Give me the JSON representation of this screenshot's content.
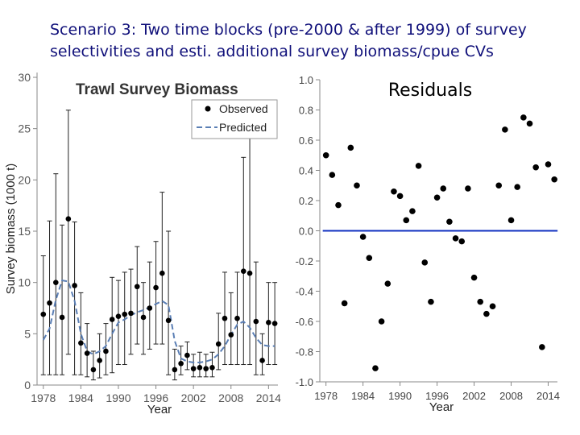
{
  "slide": {
    "title_line1": "Scenario 3: Two time blocks (pre-2000 & after 1999) of survey",
    "title_line2": "selectivities and esti. additional survey biomass/cpue CVs"
  },
  "chart_data": [
    {
      "type": "scatter",
      "title": "Trawl Survey Biomass",
      "xlabel": "Year",
      "ylabel": "Survey biomass  (1000 t)",
      "xlim": [
        1977,
        2015.5
      ],
      "ylim": [
        0,
        30
      ],
      "xticks": [
        1978,
        1984,
        1990,
        1996,
        2002,
        2008,
        2014
      ],
      "yticks": [
        0,
        5,
        10,
        15,
        20,
        25,
        30
      ],
      "legend_position": "top-right",
      "colors": {
        "observed": "#000000",
        "predicted": "#5b7fb5"
      },
      "series": [
        {
          "name": "Observed",
          "style": "points-with-error-bars",
          "points": [
            {
              "x": 1978,
              "y": 6.9,
              "lo": 1.0,
              "hi": 12.6
            },
            {
              "x": 1979,
              "y": 8.0,
              "lo": 1.0,
              "hi": 16.0
            },
            {
              "x": 1980,
              "y": 10.0,
              "lo": 1.0,
              "hi": 20.6
            },
            {
              "x": 1981,
              "y": 6.6,
              "lo": 1.0,
              "hi": 15.6
            },
            {
              "x": 1982,
              "y": 16.2,
              "lo": 3.0,
              "hi": 26.8
            },
            {
              "x": 1983,
              "y": 9.7,
              "lo": 1.0,
              "hi": 15.9
            },
            {
              "x": 1984,
              "y": 4.1,
              "lo": 1.0,
              "hi": 9.0
            },
            {
              "x": 1985,
              "y": 3.1,
              "lo": 0.8,
              "hi": 6.0
            },
            {
              "x": 1986,
              "y": 1.5,
              "lo": 0.5,
              "hi": 3.3
            },
            {
              "x": 1987,
              "y": 2.4,
              "lo": 0.7,
              "hi": 5.0
            },
            {
              "x": 1988,
              "y": 3.3,
              "lo": 1.0,
              "hi": 6.0
            },
            {
              "x": 1989,
              "y": 6.4,
              "lo": 1.2,
              "hi": 10.5
            },
            {
              "x": 1990,
              "y": 6.7,
              "lo": 2.0,
              "hi": 10.2
            },
            {
              "x": 1991,
              "y": 6.9,
              "lo": 2.0,
              "hi": 11.0
            },
            {
              "x": 1992,
              "y": 7.0,
              "lo": 3.0,
              "hi": 11.3
            },
            {
              "x": 1993,
              "y": 9.6,
              "lo": 4.0,
              "hi": 13.5
            },
            {
              "x": 1994,
              "y": 6.6,
              "lo": 3.0,
              "hi": 10.0
            },
            {
              "x": 1995,
              "y": 7.5,
              "lo": 3.5,
              "hi": 12.0
            },
            {
              "x": 1996,
              "y": 9.5,
              "lo": 4.0,
              "hi": 14.0
            },
            {
              "x": 1997,
              "y": 10.9,
              "lo": 4.0,
              "hi": 18.8
            },
            {
              "x": 1998,
              "y": 6.3,
              "lo": 1.0,
              "hi": 15.0
            },
            {
              "x": 1999,
              "y": 1.5,
              "lo": 0.5,
              "hi": 3.5
            },
            {
              "x": 2000,
              "y": 2.1,
              "lo": 1.0,
              "hi": 3.8
            },
            {
              "x": 2001,
              "y": 2.9,
              "lo": 1.5,
              "hi": 4.2
            },
            {
              "x": 2002,
              "y": 1.6,
              "lo": 0.8,
              "hi": 3.0
            },
            {
              "x": 2003,
              "y": 1.7,
              "lo": 0.8,
              "hi": 3.2
            },
            {
              "x": 2004,
              "y": 1.6,
              "lo": 0.8,
              "hi": 3.0
            },
            {
              "x": 2005,
              "y": 1.7,
              "lo": 0.8,
              "hi": 3.2
            },
            {
              "x": 2006,
              "y": 4.0,
              "lo": 1.5,
              "hi": 7.0
            },
            {
              "x": 2007,
              "y": 6.5,
              "lo": 2.0,
              "hi": 11.0
            },
            {
              "x": 2008,
              "y": 4.9,
              "lo": 2.0,
              "hi": 9.0
            },
            {
              "x": 2009,
              "y": 6.5,
              "lo": 2.0,
              "hi": 11.0
            },
            {
              "x": 2010,
              "y": 11.1,
              "lo": 2.0,
              "hi": 22.2
            },
            {
              "x": 2011,
              "y": 10.9,
              "lo": 2.0,
              "hi": 25.0
            },
            {
              "x": 2012,
              "y": 6.2,
              "lo": 1.0,
              "hi": 12.0
            },
            {
              "x": 2013,
              "y": 2.4,
              "lo": 1.0,
              "hi": 5.0
            },
            {
              "x": 2014,
              "y": 6.1,
              "lo": 2.0,
              "hi": 10.0
            },
            {
              "x": 2015,
              "y": 6.0,
              "lo": 2.0,
              "hi": 10.0
            }
          ]
        },
        {
          "name": "Predicted",
          "style": "dashed-line",
          "points": [
            {
              "x": 1978,
              "y": 4.4
            },
            {
              "x": 1979,
              "y": 5.5
            },
            {
              "x": 1980,
              "y": 8.3
            },
            {
              "x": 1981,
              "y": 10.2
            },
            {
              "x": 1982,
              "y": 10.1
            },
            {
              "x": 1983,
              "y": 8.2
            },
            {
              "x": 1984,
              "y": 5.0
            },
            {
              "x": 1985,
              "y": 3.3
            },
            {
              "x": 1986,
              "y": 3.0
            },
            {
              "x": 1987,
              "y": 3.3
            },
            {
              "x": 1988,
              "y": 3.8
            },
            {
              "x": 1989,
              "y": 5.0
            },
            {
              "x": 1990,
              "y": 6.1
            },
            {
              "x": 1991,
              "y": 6.4
            },
            {
              "x": 1992,
              "y": 6.8
            },
            {
              "x": 1993,
              "y": 7.1
            },
            {
              "x": 1994,
              "y": 7.3
            },
            {
              "x": 1995,
              "y": 7.6
            },
            {
              "x": 1996,
              "y": 7.9
            },
            {
              "x": 1997,
              "y": 8.2
            },
            {
              "x": 1998,
              "y": 7.8
            },
            {
              "x": 1999,
              "y": 4.3
            },
            {
              "x": 2000,
              "y": 2.6
            },
            {
              "x": 2001,
              "y": 2.3
            },
            {
              "x": 2002,
              "y": 2.2
            },
            {
              "x": 2003,
              "y": 2.2
            },
            {
              "x": 2004,
              "y": 2.3
            },
            {
              "x": 2005,
              "y": 2.5
            },
            {
              "x": 2006,
              "y": 3.0
            },
            {
              "x": 2007,
              "y": 3.8
            },
            {
              "x": 2008,
              "y": 4.9
            },
            {
              "x": 2009,
              "y": 5.9
            },
            {
              "x": 2010,
              "y": 6.2
            },
            {
              "x": 2011,
              "y": 5.6
            },
            {
              "x": 2012,
              "y": 4.6
            },
            {
              "x": 2013,
              "y": 3.9
            },
            {
              "x": 2014,
              "y": 3.8
            },
            {
              "x": 2015,
              "y": 3.8
            }
          ]
        }
      ]
    },
    {
      "type": "scatter",
      "title": "Residuals",
      "xlabel": "Year",
      "ylabel": "",
      "xlim": [
        1977,
        2015.5
      ],
      "ylim": [
        -1.0,
        1.0
      ],
      "xticks": [
        1978,
        1984,
        1990,
        1996,
        2002,
        2008,
        2014
      ],
      "yticks": [
        -1.0,
        -0.8,
        -0.6,
        -0.4,
        -0.2,
        0.0,
        0.2,
        0.4,
        0.6,
        0.8,
        1.0
      ],
      "zero_line_color": "#1030c0",
      "series": [
        {
          "points": [
            {
              "x": 1978,
              "y": 0.5
            },
            {
              "x": 1979,
              "y": 0.37
            },
            {
              "x": 1980,
              "y": 0.17
            },
            {
              "x": 1981,
              "y": -0.48
            },
            {
              "x": 1982,
              "y": 0.55
            },
            {
              "x": 1983,
              "y": 0.3
            },
            {
              "x": 1984,
              "y": -0.04
            },
            {
              "x": 1985,
              "y": -0.18
            },
            {
              "x": 1986,
              "y": -0.91
            },
            {
              "x": 1987,
              "y": -0.6
            },
            {
              "x": 1988,
              "y": -0.35
            },
            {
              "x": 1989,
              "y": 0.26
            },
            {
              "x": 1990,
              "y": 0.23
            },
            {
              "x": 1991,
              "y": 0.07
            },
            {
              "x": 1992,
              "y": 0.13
            },
            {
              "x": 1993,
              "y": 0.43
            },
            {
              "x": 1994,
              "y": -0.21
            },
            {
              "x": 1995,
              "y": -0.47
            },
            {
              "x": 1996,
              "y": 0.22
            },
            {
              "x": 1997,
              "y": 0.28
            },
            {
              "x": 1998,
              "y": 0.06
            },
            {
              "x": 1999,
              "y": -0.05
            },
            {
              "x": 2000,
              "y": -0.07
            },
            {
              "x": 2001,
              "y": 0.28
            },
            {
              "x": 2002,
              "y": -0.31
            },
            {
              "x": 2003,
              "y": -0.47
            },
            {
              "x": 2004,
              "y": -0.55
            },
            {
              "x": 2005,
              "y": -0.5
            },
            {
              "x": 2006,
              "y": 0.3
            },
            {
              "x": 2007,
              "y": 0.67
            },
            {
              "x": 2008,
              "y": 0.07
            },
            {
              "x": 2009,
              "y": 0.29
            },
            {
              "x": 2010,
              "y": 0.75
            },
            {
              "x": 2011,
              "y": 0.71
            },
            {
              "x": 2012,
              "y": 0.42
            },
            {
              "x": 2013,
              "y": -0.77
            },
            {
              "x": 2014,
              "y": 0.44
            },
            {
              "x": 2015,
              "y": 0.34
            }
          ]
        }
      ]
    }
  ]
}
